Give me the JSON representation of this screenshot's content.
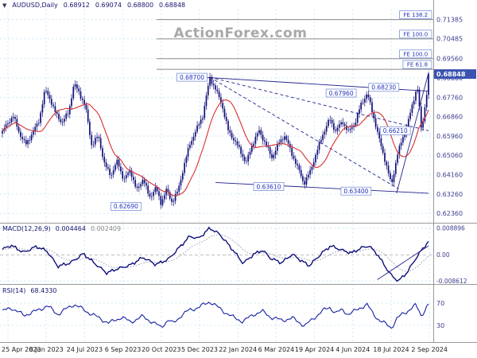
{
  "header": {
    "dropdown_icon": "▼",
    "symbol": "AUDUSD,Daily",
    "open": "0.68912",
    "high": "0.69074",
    "low": "0.68800",
    "close": "0.68848"
  },
  "watermark": "ActionForex.com",
  "colors": {
    "candle": "#10107a",
    "ma": "#d93030",
    "grid": "#cfe9f5",
    "axis_text": "#3d3d8f",
    "label_blue": "#2233bb",
    "label_border": "#7b93d8",
    "badge_bg": "#3b52b0",
    "badge_text": "#ffffff",
    "separator": "#999999",
    "fib_line": "#8a8a8a",
    "zero_line": "#aaaaaa",
    "macd_line": "#10107a",
    "signal": "#8892a8",
    "rsi_line": "#1520a0",
    "trend": "#23238c",
    "date_text": "#222222"
  },
  "chart_data": {
    "type": "candlestick",
    "title": "AUDUSD Daily",
    "symbol": "AUDUSD",
    "timeframe": "Daily",
    "current_ohlc": {
      "open": 0.68912,
      "high": 0.69074,
      "low": 0.688,
      "close": 0.68848
    },
    "x_axis": {
      "tick_labels": [
        "25 Apr 2023",
        "8 Jun 2023",
        "24 Jul 2023",
        "6 Sep 2023",
        "20 Oct 2023",
        "5 Dec 2023",
        "22 Jan 2024",
        "6 Mar 2024",
        "19 Apr 2024",
        "4 Jun 2024",
        "18 Jul 2024",
        "2 Sep 2024"
      ]
    },
    "y_axis": {
      "tick_labels": [
        "0.71385",
        "0.70485",
        "0.69560",
        "0.68660",
        "0.67760",
        "0.66860",
        "0.65960",
        "0.65060",
        "0.64160",
        "0.63260",
        "0.62360"
      ],
      "range": [
        0.62,
        0.7185
      ],
      "current_price": "0.68848"
    },
    "series": {
      "close_anchors": [
        [
          0.0,
          0.6615
        ],
        [
          0.012,
          0.6655
        ],
        [
          0.025,
          0.669
        ],
        [
          0.04,
          0.661
        ],
        [
          0.055,
          0.6555
        ],
        [
          0.07,
          0.661
        ],
        [
          0.085,
          0.666
        ],
        [
          0.1,
          0.681
        ],
        [
          0.112,
          0.677
        ],
        [
          0.125,
          0.67
        ],
        [
          0.14,
          0.666
        ],
        [
          0.155,
          0.6705
        ],
        [
          0.168,
          0.6838
        ],
        [
          0.18,
          0.68
        ],
        [
          0.195,
          0.673
        ],
        [
          0.21,
          0.655
        ],
        [
          0.225,
          0.66
        ],
        [
          0.24,
          0.646
        ],
        [
          0.255,
          0.6415
        ],
        [
          0.27,
          0.648
        ],
        [
          0.285,
          0.639
        ],
        [
          0.3,
          0.644
        ],
        [
          0.315,
          0.634
        ],
        [
          0.33,
          0.64
        ],
        [
          0.345,
          0.631
        ],
        [
          0.36,
          0.6355
        ],
        [
          0.372,
          0.6285
        ],
        [
          0.385,
          0.6345
        ],
        [
          0.398,
          0.629
        ],
        [
          0.412,
          0.634
        ],
        [
          0.425,
          0.645
        ],
        [
          0.44,
          0.656
        ],
        [
          0.455,
          0.6625
        ],
        [
          0.47,
          0.669
        ],
        [
          0.487,
          0.6868
        ],
        [
          0.5,
          0.6815
        ],
        [
          0.515,
          0.6745
        ],
        [
          0.53,
          0.662
        ],
        [
          0.545,
          0.6575
        ],
        [
          0.56,
          0.652
        ],
        [
          0.572,
          0.647
        ],
        [
          0.588,
          0.6565
        ],
        [
          0.602,
          0.662
        ],
        [
          0.618,
          0.656
        ],
        [
          0.632,
          0.6495
        ],
        [
          0.648,
          0.656
        ],
        [
          0.662,
          0.66
        ],
        [
          0.678,
          0.652
        ],
        [
          0.695,
          0.644
        ],
        [
          0.708,
          0.6375
        ],
        [
          0.722,
          0.643
        ],
        [
          0.738,
          0.6525
        ],
        [
          0.752,
          0.6605
        ],
        [
          0.768,
          0.6675
        ],
        [
          0.782,
          0.662
        ],
        [
          0.798,
          0.6665
        ],
        [
          0.812,
          0.6615
        ],
        [
          0.828,
          0.666
        ],
        [
          0.842,
          0.6745
        ],
        [
          0.856,
          0.6795
        ],
        [
          0.87,
          0.6695
        ],
        [
          0.885,
          0.6575
        ],
        [
          0.9,
          0.647
        ],
        [
          0.913,
          0.6365
        ],
        [
          0.926,
          0.6505
        ],
        [
          0.94,
          0.659
        ],
        [
          0.952,
          0.666
        ],
        [
          0.962,
          0.674
        ],
        [
          0.97,
          0.6805
        ],
        [
          0.974,
          0.682
        ],
        [
          0.979,
          0.672
        ],
        [
          0.983,
          0.6625
        ],
        [
          0.988,
          0.668
        ],
        [
          0.992,
          0.674
        ],
        [
          0.996,
          0.68
        ],
        [
          1.0,
          0.68848
        ]
      ],
      "moving_average": {
        "type": "sma",
        "window": 15
      }
    },
    "fib_levels": [
      {
        "label": "FE 138.2",
        "price": 0.71385
      },
      {
        "label": "FE 100.0",
        "price": 0.70485
      },
      {
        "label": "FE 100.0",
        "price": 0.6956
      },
      {
        "label": "FE 61.8",
        "price": 0.6907
      }
    ],
    "price_labels": [
      {
        "text": "0.68700",
        "x": 0.445,
        "price": 0.687
      },
      {
        "text": "0.67960",
        "x": 0.795,
        "price": 0.6796
      },
      {
        "text": "0.68230",
        "x": 0.895,
        "price": 0.6823
      },
      {
        "text": "0.66210",
        "x": 0.922,
        "price": 0.6621
      },
      {
        "text": "0.63610",
        "x": 0.625,
        "price": 0.6361
      },
      {
        "text": "0.63400",
        "x": 0.83,
        "price": 0.634
      },
      {
        "text": "0.62690",
        "x": 0.29,
        "price": 0.6269
      }
    ],
    "trendlines": [
      {
        "x1": 0.43,
        "p1": 0.6875,
        "x2": 1.0,
        "p2": 0.6805,
        "dashed": false
      },
      {
        "x1": 0.487,
        "p1": 0.687,
        "x2": 0.93,
        "p2": 0.635,
        "dashed": true
      },
      {
        "x1": 0.487,
        "p1": 0.687,
        "x2": 1.0,
        "p2": 0.6621,
        "dashed": true
      },
      {
        "x1": 0.5,
        "p1": 0.638,
        "x2": 1.0,
        "p2": 0.633,
        "dashed": false
      },
      {
        "x1": 0.925,
        "p1": 0.633,
        "x2": 1.0,
        "p2": 0.689,
        "dashed": false
      }
    ],
    "indicators": {
      "macd": {
        "legend": "MACD(12,26,9)",
        "value": "0.004464",
        "signal_value": "0.002409",
        "axis_ticks": [
          "0.008896",
          "0.00",
          "-0.008612"
        ],
        "range": [
          -0.0094,
          0.0096
        ],
        "anchors": [
          [
            0.0,
            0.0018
          ],
          [
            0.02,
            0.0032
          ],
          [
            0.05,
            0.0008
          ],
          [
            0.08,
            0.0028
          ],
          [
            0.105,
            0.0012
          ],
          [
            0.13,
            -0.0038
          ],
          [
            0.16,
            -0.0026
          ],
          [
            0.19,
            0.0004
          ],
          [
            0.22,
            -0.0032
          ],
          [
            0.245,
            -0.006
          ],
          [
            0.27,
            -0.0046
          ],
          [
            0.3,
            -0.0034
          ],
          [
            0.33,
            -0.0008
          ],
          [
            0.36,
            -0.0032
          ],
          [
            0.39,
            -0.0014
          ],
          [
            0.42,
            0.0032
          ],
          [
            0.44,
            0.0062
          ],
          [
            0.46,
            0.0054
          ],
          [
            0.487,
            0.0089
          ],
          [
            0.51,
            0.0068
          ],
          [
            0.54,
            0.0018
          ],
          [
            0.565,
            -0.0028
          ],
          [
            0.59,
            0.0002
          ],
          [
            0.61,
            0.0016
          ],
          [
            0.63,
            -0.0012
          ],
          [
            0.655,
            -0.0026
          ],
          [
            0.68,
            0.0002
          ],
          [
            0.7,
            -0.0018
          ],
          [
            0.72,
            -0.0036
          ],
          [
            0.75,
            0.0006
          ],
          [
            0.77,
            0.003
          ],
          [
            0.8,
            0.0014
          ],
          [
            0.82,
            0.0006
          ],
          [
            0.84,
            0.0022
          ],
          [
            0.86,
            0.003
          ],
          [
            0.88,
            0.0002
          ],
          [
            0.9,
            -0.0042
          ],
          [
            0.915,
            -0.0072
          ],
          [
            0.93,
            -0.0086
          ],
          [
            0.95,
            -0.0058
          ],
          [
            0.97,
            -0.0012
          ],
          [
            0.985,
            0.0018
          ],
          [
            1.0,
            0.004464
          ]
        ],
        "trendline": {
          "x1": 0.88,
          "v1": -0.0082,
          "x2": 1.0,
          "v2": 0.003
        }
      },
      "rsi": {
        "legend": "RSI(14)",
        "value": "68.4330",
        "upper": "70",
        "lower": "30",
        "range": [
          0,
          100
        ],
        "anchors": [
          [
            0.0,
            55
          ],
          [
            0.02,
            62
          ],
          [
            0.05,
            48
          ],
          [
            0.08,
            56
          ],
          [
            0.105,
            65
          ],
          [
            0.13,
            50
          ],
          [
            0.168,
            68
          ],
          [
            0.2,
            54
          ],
          [
            0.23,
            42
          ],
          [
            0.25,
            34
          ],
          [
            0.28,
            45
          ],
          [
            0.3,
            36
          ],
          [
            0.33,
            46
          ],
          [
            0.36,
            32
          ],
          [
            0.372,
            27
          ],
          [
            0.39,
            40
          ],
          [
            0.4,
            33
          ],
          [
            0.42,
            48
          ],
          [
            0.44,
            58
          ],
          [
            0.46,
            62
          ],
          [
            0.487,
            73
          ],
          [
            0.51,
            60
          ],
          [
            0.54,
            45
          ],
          [
            0.565,
            37
          ],
          [
            0.59,
            50
          ],
          [
            0.61,
            55
          ],
          [
            0.63,
            45
          ],
          [
            0.655,
            39
          ],
          [
            0.68,
            43
          ],
          [
            0.7,
            34
          ],
          [
            0.71,
            29
          ],
          [
            0.735,
            46
          ],
          [
            0.752,
            56
          ],
          [
            0.768,
            63
          ],
          [
            0.782,
            52
          ],
          [
            0.798,
            58
          ],
          [
            0.812,
            50
          ],
          [
            0.828,
            56
          ],
          [
            0.842,
            63
          ],
          [
            0.856,
            67
          ],
          [
            0.87,
            51
          ],
          [
            0.885,
            39
          ],
          [
            0.9,
            32
          ],
          [
            0.913,
            26
          ],
          [
            0.926,
            42
          ],
          [
            0.94,
            51
          ],
          [
            0.955,
            58
          ],
          [
            0.97,
            66
          ],
          [
            0.979,
            55
          ],
          [
            0.983,
            47
          ],
          [
            1.0,
            68.433
          ]
        ]
      }
    }
  }
}
